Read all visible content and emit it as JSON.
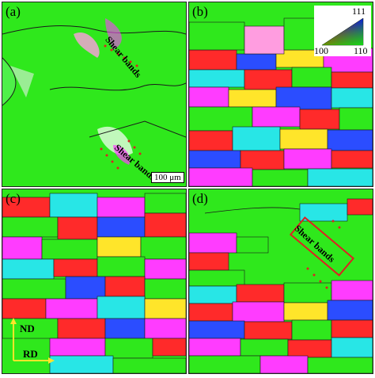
{
  "panels": [
    {
      "label": "(a)",
      "annotations": [
        "Shear bands",
        "Shear bands"
      ],
      "scale_bar": "100 μm"
    },
    {
      "label": "(b)",
      "legend": {
        "top": "111",
        "left": "100",
        "right": "110"
      }
    },
    {
      "label": "(c)",
      "axes": {
        "vertical": "ND",
        "horizontal": "RD"
      }
    },
    {
      "label": "(d)",
      "annotations": [
        "Shear bands"
      ]
    }
  ],
  "colors": {
    "green": "#2fe81c",
    "red": "#ff2a2a",
    "blue": "#2b4dff",
    "magenta": "#ff3cff",
    "cyan": "#28e6e6",
    "yellow": "#ffe52a",
    "boundary": "#1a1a1a"
  }
}
